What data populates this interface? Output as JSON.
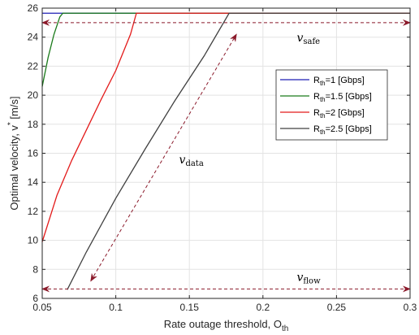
{
  "chart_data": {
    "type": "line",
    "xlabel": "Rate outage threshold, O",
    "xlabel_sub": "th",
    "ylabel": "Optimal velocity, v",
    "ylabel_sup": "*",
    "ylabel_unit": " [m/s]",
    "xlim": [
      0.05,
      0.3
    ],
    "ylim": [
      6,
      26
    ],
    "xticks": [
      0.05,
      0.1,
      0.15,
      0.2,
      0.25,
      0.3
    ],
    "xtick_labels": [
      "0.05",
      "0.1",
      "0.15",
      "0.2",
      "0.25",
      "0.3"
    ],
    "yticks": [
      6,
      8,
      10,
      12,
      14,
      16,
      18,
      20,
      22,
      24,
      26
    ],
    "ytick_labels": [
      "6",
      "8",
      "10",
      "12",
      "14",
      "16",
      "18",
      "20",
      "22",
      "24",
      "26"
    ],
    "grid": true,
    "legend_placement": "center-right",
    "series": [
      {
        "name_main": "R",
        "name_sub": "th",
        "name_rest": "=1 [Gbps]",
        "color": "#1f1fb4",
        "x": [
          0.05,
          0.3
        ],
        "y": [
          25.65,
          25.65
        ]
      },
      {
        "name_main": "R",
        "name_sub": "th",
        "name_rest": "=1.5 [Gbps]",
        "color": "#1a7a1a",
        "x": [
          0.05,
          0.054,
          0.058,
          0.062,
          0.064,
          0.3
        ],
        "y": [
          20.6,
          22.6,
          24.2,
          25.4,
          25.65,
          25.65
        ]
      },
      {
        "name_main": "R",
        "name_sub": "th",
        "name_rest": "=2 [Gbps]",
        "color": "#e31a1a",
        "x": [
          0.05,
          0.06,
          0.07,
          0.08,
          0.09,
          0.1,
          0.11,
          0.114,
          0.3
        ],
        "y": [
          9.9,
          13.1,
          15.5,
          17.6,
          19.7,
          21.7,
          24.2,
          25.65,
          25.65
        ]
      },
      {
        "name_main": "R",
        "name_sub": "th",
        "name_rest": "=2.5 [Gbps]",
        "color": "#404040",
        "x": [
          0.067,
          0.08,
          0.1,
          0.12,
          0.14,
          0.16,
          0.177,
          0.3
        ],
        "y": [
          6.6,
          9.2,
          12.9,
          16.3,
          19.6,
          22.7,
          25.65,
          25.65
        ]
      }
    ],
    "annotations": [
      {
        "name": "v-safe-arrow",
        "text_main": "v",
        "text_sub": "safe",
        "text_x": 0.223,
        "text_y": 23.7,
        "arrow_from": [
          0.05,
          25.0
        ],
        "arrow_to": [
          0.3,
          25.0
        ],
        "double": true,
        "color": "#8b1a2b"
      },
      {
        "name": "v-data-arrow",
        "text_main": "v",
        "text_sub": "data",
        "text_x": 0.143,
        "text_y": 15.3,
        "arrow_from": [
          0.083,
          7.2
        ],
        "arrow_to": [
          0.182,
          24.2
        ],
        "double": true,
        "color": "#8b1a2b"
      },
      {
        "name": "v-flow-arrow",
        "text_main": "v",
        "text_sub": "flow",
        "text_x": 0.223,
        "text_y": 7.2,
        "arrow_from": [
          0.05,
          6.65
        ],
        "arrow_to": [
          0.3,
          6.65
        ],
        "double": true,
        "color": "#8b1a2b"
      }
    ]
  }
}
